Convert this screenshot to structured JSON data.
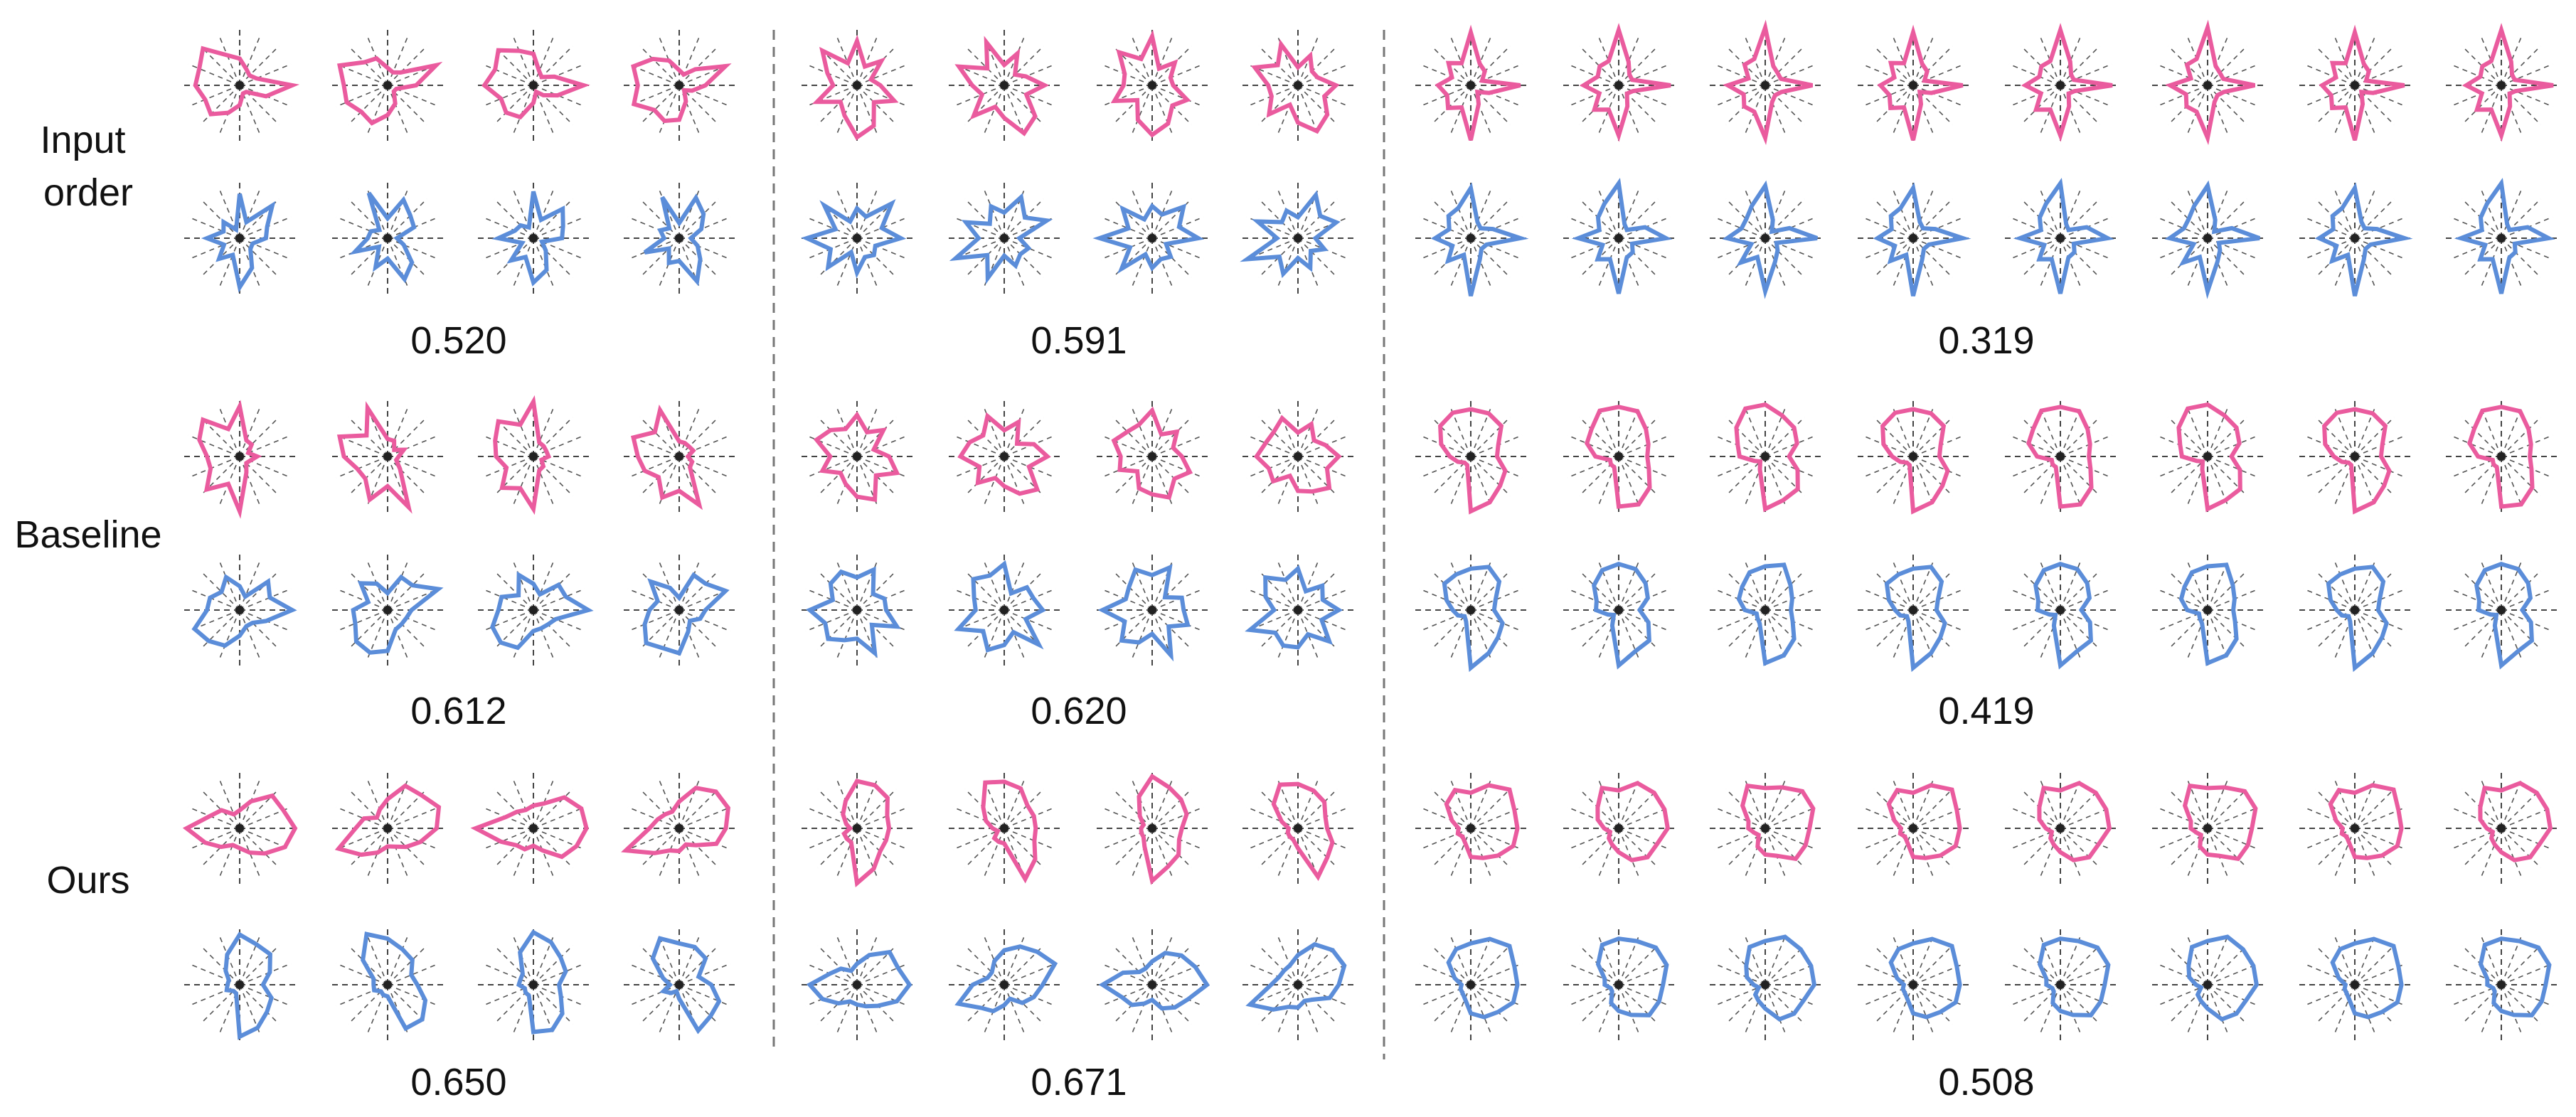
{
  "colors": {
    "pink": "#EA5B9E",
    "blue": "#5B8DD9"
  },
  "row_labels": [
    "Input\norder",
    "Baseline",
    "Ours"
  ],
  "chart_data": {
    "type": "radar",
    "num_axes": 16,
    "row_labels": [
      "Input order",
      "Baseline",
      "Ours"
    ],
    "groups": [
      {
        "glyphs_per_row": 4,
        "scores": [
          "0.520",
          "0.612",
          "0.650"
        ]
      },
      {
        "glyphs_per_row": 4,
        "scores": [
          "0.591",
          "0.620",
          "0.671"
        ]
      },
      {
        "glyphs_per_row": 8,
        "scores": [
          "0.319",
          "0.419",
          "0.508"
        ]
      }
    ],
    "series": [
      {
        "color": "pink"
      },
      {
        "color": "blue"
      }
    ],
    "shapes": {
      "g0": {
        "input": {
          "pink": [
            0.5,
            0.3,
            0.2,
            0.35,
            0.9,
            0.45,
            0.2,
            0.15,
            0.3,
            0.55,
            0.7,
            0.6,
            0.8,
            0.75,
            0.85,
            0.6
          ],
          "blue": [
            0.8,
            0.3,
            0.75,
            0.55,
            0.45,
            0.2,
            0.3,
            0.55,
            0.8,
            0.35,
            0.5,
            0.25,
            0.6,
            0.3,
            0.35,
            0.2
          ]
        },
        "baseline": {
          "pink": [
            0.9,
            0.3,
            0.25,
            0.2,
            0.3,
            0.15,
            0.2,
            0.3,
            0.9,
            0.55,
            0.8,
            0.5,
            0.6,
            0.75,
            0.85,
            0.55
          ],
          "blue": [
            0.45,
            0.25,
            0.65,
            0.6,
            0.9,
            0.45,
            0.35,
            0.3,
            0.4,
            0.7,
            0.75,
            0.8,
            0.6,
            0.55,
            0.4,
            0.65
          ]
        },
        "ours": {
          "pink": [
            0.35,
            0.5,
            0.75,
            0.85,
            0.95,
            0.8,
            0.65,
            0.45,
            0.3,
            0.35,
            0.45,
            0.6,
            0.95,
            0.55,
            0.4,
            0.3
          ],
          "blue": [
            0.9,
            0.75,
            0.7,
            0.6,
            0.4,
            0.55,
            0.7,
            0.8,
            0.85,
            0.2,
            0.15,
            0.2,
            0.25,
            0.2,
            0.3,
            0.6
          ]
        }
      },
      "g1": {
        "input": {
          "pink": [
            0.8,
            0.35,
            0.55,
            0.3,
            0.4,
            0.65,
            0.45,
            0.75,
            0.85,
            0.6,
            0.4,
            0.7,
            0.45,
            0.55,
            0.8,
            0.45
          ],
          "blue": [
            0.55,
            0.4,
            0.8,
            0.5,
            0.75,
            0.3,
            0.45,
            0.35,
            0.55,
            0.3,
            0.7,
            0.45,
            0.9,
            0.4,
            0.75,
            0.35
          ]
        },
        "baseline": {
          "pink": [
            0.75,
            0.45,
            0.6,
            0.35,
            0.55,
            0.7,
            0.5,
            0.8,
            0.65,
            0.55,
            0.4,
            0.6,
            0.5,
            0.75,
            0.6,
            0.55
          ],
          "blue": [
            0.6,
            0.75,
            0.35,
            0.55,
            0.5,
            0.7,
            0.4,
            0.8,
            0.45,
            0.6,
            0.7,
            0.55,
            0.85,
            0.45,
            0.6,
            0.75
          ]
        },
        "ours": {
          "pink": [
            0.85,
            0.8,
            0.7,
            0.6,
            0.55,
            0.5,
            0.6,
            0.75,
            0.9,
            0.3,
            0.25,
            0.2,
            0.15,
            0.2,
            0.3,
            0.55
          ],
          "blue": [
            0.4,
            0.55,
            0.75,
            0.8,
            0.9,
            0.7,
            0.55,
            0.4,
            0.3,
            0.35,
            0.45,
            0.6,
            0.85,
            0.5,
            0.35,
            0.3
          ]
        }
      },
      "g2": {
        "input": {
          "pink": [
            0.95,
            0.4,
            0.3,
            0.25,
            0.85,
            0.3,
            0.2,
            0.35,
            0.9,
            0.45,
            0.55,
            0.4,
            0.6,
            0.35,
            0.5,
            0.45
          ],
          "blue": [
            0.9,
            0.3,
            0.2,
            0.45,
            0.85,
            0.25,
            0.3,
            0.4,
            0.95,
            0.35,
            0.55,
            0.3,
            0.65,
            0.4,
            0.5,
            0.6
          ]
        },
        "baseline": {
          "pink": [
            0.85,
            0.8,
            0.7,
            0.55,
            0.45,
            0.6,
            0.75,
            0.85,
            0.9,
            0.2,
            0.15,
            0.2,
            0.4,
            0.55,
            0.7,
            0.85
          ],
          "blue": [
            0.75,
            0.8,
            0.65,
            0.5,
            0.4,
            0.55,
            0.7,
            0.8,
            0.95,
            0.25,
            0.15,
            0.2,
            0.35,
            0.45,
            0.6,
            0.7
          ]
        },
        "ours": {
          "pink": [
            0.65,
            0.8,
            0.9,
            0.85,
            0.8,
            0.75,
            0.7,
            0.55,
            0.45,
            0.3,
            0.2,
            0.2,
            0.25,
            0.35,
            0.55,
            0.75
          ],
          "blue": [
            0.75,
            0.85,
            0.9,
            0.85,
            0.8,
            0.75,
            0.7,
            0.6,
            0.45,
            0.3,
            0.2,
            0.15,
            0.2,
            0.3,
            0.5,
            0.7
          ]
        }
      }
    }
  }
}
